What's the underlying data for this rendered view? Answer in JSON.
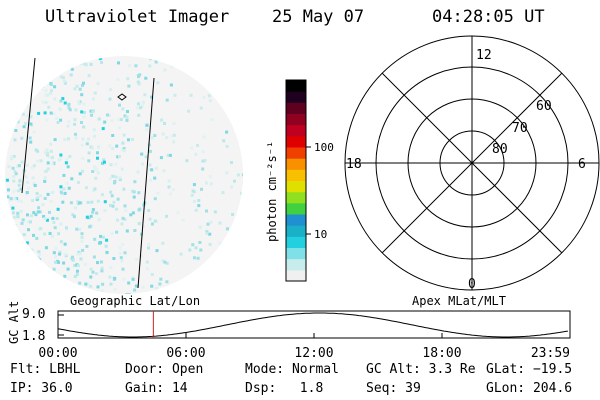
{
  "header": {
    "instrument": "Ultraviolet Imager",
    "date": "25 May 07",
    "time": "04:28:05 UT"
  },
  "colorbar": {
    "unit_label": "photon cm⁻²s⁻¹",
    "ticks": [
      {
        "label": "100",
        "value": 100
      },
      {
        "label": "10",
        "value": 10
      }
    ],
    "colors": [
      "#f0f0f0",
      "#c8ecec",
      "#7fe0e8",
      "#22d0e0",
      "#1ab0c8",
      "#2090d0",
      "#40d040",
      "#90e020",
      "#e0e000",
      "#f8c000",
      "#f89000",
      "#f04000",
      "#e00000",
      "#c00020",
      "#900020",
      "#600020",
      "#200020",
      "#000000"
    ]
  },
  "polar": {
    "top_label": "12",
    "bottom_label": "0",
    "left_label": "18",
    "right_label": "6",
    "ring_labels": [
      "60",
      "70",
      "80"
    ]
  },
  "altitude_plot": {
    "title_left": "Geographic Lat/Lon",
    "title_right": "Apex MLat/MLT",
    "y_axis_label": "GC Alt",
    "y_ticks": [
      "9.0",
      "1.8"
    ],
    "x_ticks": [
      "00:00",
      "06:00",
      "12:00",
      "18:00",
      "23:59"
    ],
    "marker_time_hours": 4.47
  },
  "status": {
    "row1": {
      "filter": "Flt: LBHL",
      "door": "Door: Open",
      "mode": "Mode: Normal",
      "gc_alt": "GC Alt: 3.3 Re",
      "glat": "GLat: −19.5"
    },
    "row2": {
      "ip": "IP: 36.0",
      "gain": "Gain: 14",
      "dsp": "Dsp:   1.8",
      "seq": "Seq: 39",
      "glon": "GLon: 204.6"
    }
  }
}
